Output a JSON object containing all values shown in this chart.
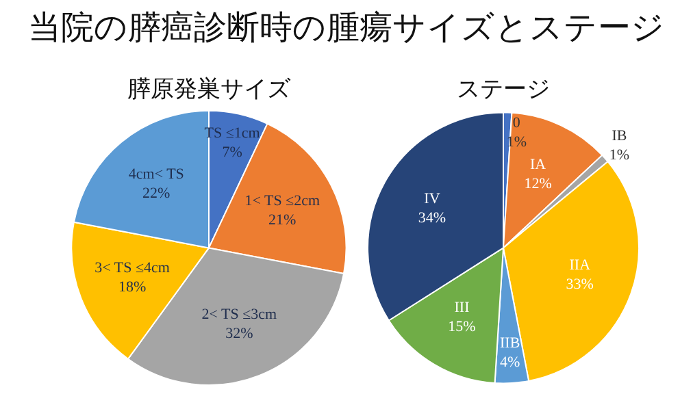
{
  "chart_data": [
    {
      "type": "pie",
      "title": "当院の膵癌診断時の腫瘍サイズとステージ",
      "subtitle": "膵原発巣サイズ",
      "categories": [
        "TS ≤1cm",
        "1< TS ≤2cm",
        "2< TS ≤3cm",
        "3< TS ≤4cm",
        "4cm< TS"
      ],
      "values": [
        7,
        21,
        32,
        18,
        22
      ],
      "colors": [
        "#4472c4",
        "#ed7d31",
        "#a5a5a5",
        "#ffc000",
        "#5b9bd5"
      ],
      "value_labels": [
        "7%",
        "21%",
        "32%",
        "18%",
        "22%"
      ]
    },
    {
      "type": "pie",
      "title": "ステージ",
      "categories": [
        "0",
        "IA",
        "IB",
        "IIA",
        "IIB",
        "III",
        "IV"
      ],
      "values": [
        1,
        12,
        1,
        33,
        4,
        15,
        34
      ],
      "colors": [
        "#4472c4",
        "#ed7d31",
        "#a5a5a5",
        "#ffc000",
        "#5b9bd5",
        "#70ad47",
        "#264478"
      ],
      "value_labels": [
        "1%",
        "12%",
        "1%",
        "33%",
        "4%",
        "15%",
        "34%"
      ]
    }
  ]
}
